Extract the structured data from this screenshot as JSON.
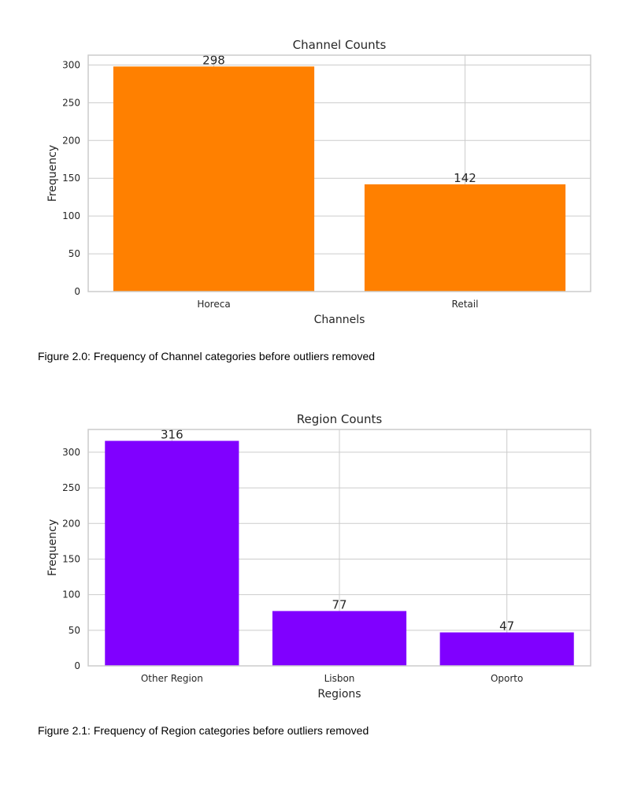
{
  "chart_data": [
    {
      "type": "bar",
      "title": "Channel Counts",
      "xlabel": "Channels",
      "ylabel": "Frequency",
      "categories": [
        "Horeca",
        "Retail"
      ],
      "values": [
        298,
        142
      ],
      "data_labels": [
        "298",
        "142"
      ],
      "ylim": [
        0,
        313
      ],
      "yticks": [
        0,
        50,
        100,
        150,
        200,
        250,
        300
      ],
      "grid": true,
      "bar_color": "#FF8000"
    },
    {
      "type": "bar",
      "title": "Region Counts",
      "xlabel": "Regions",
      "ylabel": "Frequency",
      "categories": [
        "Other Region",
        "Lisbon",
        "Oporto"
      ],
      "values": [
        316,
        77,
        47
      ],
      "data_labels": [
        "316",
        "77",
        "47"
      ],
      "ylim": [
        0,
        332
      ],
      "yticks": [
        0,
        50,
        100,
        150,
        200,
        250,
        300
      ],
      "grid": true,
      "bar_color": "#8000FF"
    }
  ],
  "captions": {
    "channel": "Figure 2.0: Frequency of Channel categories before outliers removed",
    "region": "Figure 2.1: Frequency of Region categories before outliers removed"
  }
}
